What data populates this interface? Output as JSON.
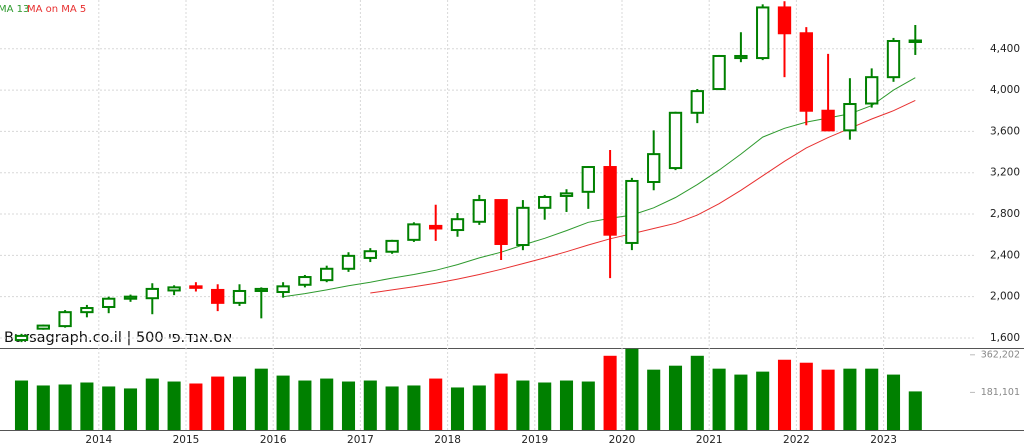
{
  "chart_data": {
    "type": "candlestick",
    "watermark": "Bursagraph.co.il | 500 אס.אנד.פי",
    "categories": [
      null,
      null,
      null,
      "2014",
      null,
      null,
      null,
      "2015",
      null,
      null,
      null,
      "2016",
      null,
      null,
      null,
      "2017",
      null,
      null,
      null,
      "2018",
      null,
      null,
      null,
      "2019",
      null,
      null,
      null,
      "2020",
      null,
      null,
      null,
      "2021",
      null,
      null,
      null,
      "2022",
      null,
      null,
      null,
      "2023",
      null,
      null
    ],
    "open": [
      1580,
      1690,
      1715,
      1850,
      1900,
      1980,
      1985,
      2060,
      2100,
      2065,
      1940,
      2055,
      2045,
      2115,
      2160,
      2270,
      2375,
      2435,
      2550,
      2685,
      2645,
      2725,
      2935,
      2500,
      2860,
      2975,
      3015,
      3255,
      2520,
      3110,
      3245,
      3780,
      4010,
      4310,
      4310,
      4800,
      4550,
      3800,
      3610,
      3870,
      4125,
      4470
    ],
    "high": [
      1640,
      1730,
      1870,
      1920,
      2000,
      2020,
      2130,
      2110,
      2140,
      2120,
      2120,
      2090,
      2140,
      2210,
      2300,
      2430,
      2470,
      2550,
      2720,
      2890,
      2810,
      2985,
      2940,
      2935,
      2985,
      3040,
      3265,
      3420,
      3150,
      3610,
      3790,
      4010,
      4340,
      4560,
      4830,
      4860,
      4610,
      4350,
      4115,
      4210,
      4505,
      4630
    ],
    "low": [
      1560,
      1680,
      1700,
      1800,
      1840,
      1950,
      1830,
      2015,
      2050,
      1860,
      1910,
      1790,
      1990,
      2090,
      2140,
      2240,
      2335,
      2415,
      2530,
      2540,
      2580,
      2695,
      2355,
      2450,
      2745,
      2820,
      2850,
      2180,
      2450,
      3030,
      3225,
      3680,
      4000,
      4270,
      4290,
      4125,
      3660,
      3610,
      3520,
      3830,
      4080,
      4340
    ],
    "close": [
      1620,
      1720,
      1850,
      1890,
      1980,
      2000,
      2075,
      2090,
      2090,
      1940,
      2055,
      2075,
      2100,
      2190,
      2270,
      2395,
      2440,
      2540,
      2700,
      2660,
      2750,
      2935,
      2510,
      2860,
      2965,
      3000,
      3255,
      2600,
      3120,
      3380,
      3780,
      3990,
      4330,
      4330,
      4800,
      4550,
      3800,
      3610,
      3865,
      4125,
      4475,
      4480
    ],
    "up_color": "#008000",
    "down_color": "#ff0000",
    "series": [
      {
        "name": "MA 13",
        "color": "#2e9a2e",
        "values": [
          null,
          null,
          null,
          null,
          null,
          null,
          null,
          null,
          null,
          null,
          null,
          null,
          2000,
          2030,
          2065,
          2105,
          2140,
          2180,
          2215,
          2255,
          2310,
          2375,
          2430,
          2500,
          2565,
          2640,
          2720,
          2760,
          2790,
          2860,
          2960,
          3085,
          3225,
          3380,
          3545,
          3630,
          3690,
          3730,
          3770,
          3850,
          4000,
          4120
        ]
      },
      {
        "name": "MA on MA 5",
        "color": "#e83030",
        "values": [
          null,
          null,
          null,
          null,
          null,
          null,
          null,
          null,
          null,
          null,
          null,
          null,
          null,
          null,
          null,
          null,
          2035,
          2065,
          2095,
          2130,
          2170,
          2215,
          2265,
          2320,
          2375,
          2435,
          2500,
          2560,
          2610,
          2660,
          2710,
          2790,
          2900,
          3030,
          3170,
          3310,
          3440,
          3540,
          3630,
          3720,
          3800,
          3900
        ]
      }
    ],
    "ylim": [
      1503,
      4872
    ],
    "yticks": [
      {
        "value": 1600,
        "label": "1,600"
      },
      {
        "value": 2000,
        "label": "2,000"
      },
      {
        "value": 2400,
        "label": "2,400"
      },
      {
        "value": 2800,
        "label": "2,800"
      },
      {
        "value": 3200,
        "label": "3,200"
      },
      {
        "value": 3600,
        "label": "3,600"
      },
      {
        "value": 4000,
        "label": "4,000"
      },
      {
        "value": 4400,
        "label": "4,400"
      }
    ],
    "grid": true,
    "volume": {
      "values": [
        238300,
        214500,
        219200,
        228800,
        209700,
        200200,
        247800,
        233500,
        224000,
        257400,
        257400,
        295500,
        262100,
        238300,
        247800,
        233500,
        238300,
        209700,
        214500,
        247800,
        204900,
        214500,
        271700,
        238300,
        228800,
        238300,
        233500,
        357500,
        390800,
        290700,
        309800,
        357500,
        295500,
        266900,
        281200,
        338400,
        324100,
        290700,
        295500,
        295500,
        266900,
        185900
      ],
      "ylim": [
        0,
        395000
      ],
      "yticks": [
        {
          "value": 181101,
          "label": "181,101"
        },
        {
          "value": 362202,
          "label": "362,202"
        }
      ]
    }
  }
}
